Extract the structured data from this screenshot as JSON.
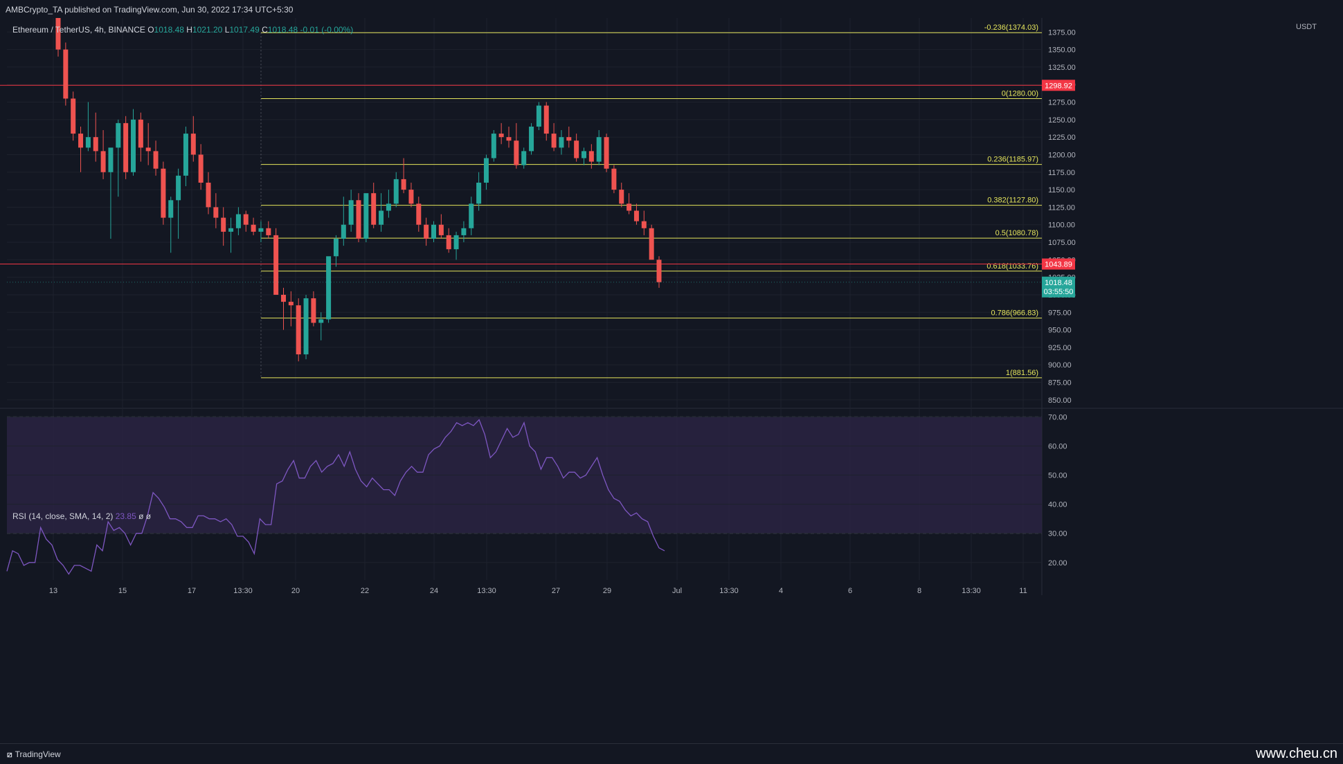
{
  "header": {
    "publisher_line": "AMBCrypto_TA published on TradingView.com, Jun 30, 2022 17:34 UTC+5:30"
  },
  "legend": {
    "symbol": "Ethereum / TetherUS, 4h, BINANCE",
    "open_label": "O",
    "open": "1018.48",
    "high_label": "H",
    "high": "1021.20",
    "low_label": "L",
    "low": "1017.49",
    "close_label": "C",
    "close": "1018.48",
    "change": "-0.01 (-0.00%)"
  },
  "rsi_legend": {
    "label": "RSI (14, close, SMA, 14, 2)",
    "value": "23.85",
    "extra": "ø ø"
  },
  "currency": "USDT",
  "price_badges": {
    "upper_line": "1298.92",
    "lower_line": "1043.89",
    "last_price": "1018.48",
    "countdown": "03:55:50"
  },
  "footer": {
    "brand": "TradingView",
    "watermark": "www.cheu.cn"
  },
  "colors": {
    "background": "#131722",
    "up": "#26a69a",
    "down": "#ef5350",
    "fib": "#e6e65c",
    "horizontal_line": "#f23645",
    "rsi_line": "#7e57c2",
    "rsi_band": "#2a2342"
  },
  "chart_data": [
    {
      "type": "candlestick",
      "title": "Ethereum / TetherUS, 4h, BINANCE",
      "ylabel": "USDT",
      "ylim": [
        840,
        1395
      ],
      "y_ticks": [
        850,
        875,
        900,
        925,
        950,
        975,
        1000,
        1025,
        1050,
        1075,
        1100,
        1125,
        1150,
        1175,
        1200,
        1225,
        1250,
        1275,
        1300,
        1325,
        1350,
        1375
      ],
      "x_tick_labels": [
        "13",
        "15",
        "17",
        "13:30",
        "20",
        "22",
        "24",
        "13:30",
        "27",
        "29",
        "Jul",
        "13:30",
        "4",
        "6",
        "8",
        "13:30",
        "11"
      ],
      "horizontal_lines": [
        1298.92,
        1043.89
      ],
      "fib_levels": [
        {
          "label": "-0.236(1374.03)",
          "value": 1374.03
        },
        {
          "label": "0(1280.00)",
          "value": 1280.0
        },
        {
          "label": "0.236(1185.97)",
          "value": 1185.97
        },
        {
          "label": "0.382(1127.80)",
          "value": 1127.8
        },
        {
          "label": "0.5(1080.78)",
          "value": 1080.78
        },
        {
          "label": "0.618(1033.76)",
          "value": 1033.76
        },
        {
          "label": "0.786(966.83)",
          "value": 966.83
        },
        {
          "label": "1(881.56)",
          "value": 881.56
        }
      ],
      "candles_ohlc": [
        [
          1420,
          1440,
          1340,
          1350
        ],
        [
          1350,
          1360,
          1270,
          1280
        ],
        [
          1280,
          1290,
          1220,
          1230
        ],
        [
          1230,
          1240,
          1175,
          1210
        ],
        [
          1210,
          1275,
          1205,
          1225
        ],
        [
          1225,
          1260,
          1190,
          1205
        ],
        [
          1205,
          1235,
          1165,
          1175
        ],
        [
          1175,
          1185,
          1080,
          1210
        ],
        [
          1210,
          1250,
          1140,
          1245
        ],
        [
          1245,
          1255,
          1165,
          1175
        ],
        [
          1175,
          1265,
          1170,
          1250
        ],
        [
          1250,
          1260,
          1190,
          1210
        ],
        [
          1210,
          1245,
          1185,
          1205
        ],
        [
          1205,
          1220,
          1170,
          1180
        ],
        [
          1180,
          1190,
          1100,
          1110
        ],
        [
          1110,
          1140,
          1060,
          1135
        ],
        [
          1135,
          1180,
          1080,
          1170
        ],
        [
          1170,
          1240,
          1155,
          1230
        ],
        [
          1230,
          1255,
          1190,
          1200
        ],
        [
          1200,
          1215,
          1150,
          1160
        ],
        [
          1160,
          1175,
          1115,
          1125
        ],
        [
          1125,
          1145,
          1095,
          1110
        ],
        [
          1110,
          1125,
          1070,
          1090
        ],
        [
          1090,
          1110,
          1060,
          1095
        ],
        [
          1095,
          1125,
          1085,
          1115
        ],
        [
          1115,
          1120,
          1090,
          1100
        ],
        [
          1100,
          1110,
          1085,
          1090
        ],
        [
          1090,
          1105,
          1075,
          1095
        ],
        [
          1095,
          1105,
          1080,
          1085
        ],
        [
          1085,
          1095,
          1035,
          1000
        ],
        [
          1000,
          1010,
          950,
          990
        ],
        [
          990,
          1005,
          955,
          985
        ],
        [
          985,
          995,
          905,
          915
        ],
        [
          915,
          1000,
          908,
          995
        ],
        [
          995,
          1005,
          955,
          960
        ],
        [
          960,
          975,
          935,
          965
        ],
        [
          965,
          1050,
          960,
          1055
        ],
        [
          1055,
          1085,
          1040,
          1080
        ],
        [
          1080,
          1140,
          1070,
          1100
        ],
        [
          1100,
          1150,
          1090,
          1135
        ],
        [
          1135,
          1145,
          1075,
          1080
        ],
        [
          1080,
          1140,
          1075,
          1145
        ],
        [
          1145,
          1160,
          1095,
          1100
        ],
        [
          1100,
          1145,
          1090,
          1120
        ],
        [
          1120,
          1150,
          1110,
          1130
        ],
        [
          1130,
          1175,
          1125,
          1165
        ],
        [
          1165,
          1195,
          1145,
          1150
        ],
        [
          1150,
          1160,
          1125,
          1130
        ],
        [
          1130,
          1140,
          1090,
          1100
        ],
        [
          1100,
          1110,
          1070,
          1080
        ],
        [
          1080,
          1105,
          1075,
          1100
        ],
        [
          1100,
          1115,
          1080,
          1085
        ],
        [
          1085,
          1095,
          1060,
          1065
        ],
        [
          1065,
          1090,
          1050,
          1085
        ],
        [
          1085,
          1105,
          1075,
          1095
        ],
        [
          1095,
          1140,
          1085,
          1130
        ],
        [
          1130,
          1175,
          1120,
          1160
        ],
        [
          1160,
          1200,
          1150,
          1195
        ],
        [
          1195,
          1235,
          1190,
          1230
        ],
        [
          1230,
          1245,
          1215,
          1225
        ],
        [
          1225,
          1240,
          1210,
          1220
        ],
        [
          1220,
          1245,
          1180,
          1185
        ],
        [
          1185,
          1210,
          1180,
          1205
        ],
        [
          1205,
          1245,
          1200,
          1240
        ],
        [
          1240,
          1275,
          1235,
          1270
        ],
        [
          1270,
          1275,
          1220,
          1230
        ],
        [
          1230,
          1245,
          1205,
          1210
        ],
        [
          1210,
          1235,
          1200,
          1225
        ],
        [
          1225,
          1240,
          1210,
          1220
        ],
        [
          1220,
          1230,
          1190,
          1195
        ],
        [
          1195,
          1210,
          1185,
          1205
        ],
        [
          1205,
          1215,
          1180,
          1190
        ],
        [
          1190,
          1235,
          1185,
          1225
        ],
        [
          1225,
          1230,
          1175,
          1180
        ],
        [
          1180,
          1185,
          1145,
          1150
        ],
        [
          1150,
          1160,
          1125,
          1130
        ],
        [
          1130,
          1145,
          1115,
          1120
        ],
        [
          1120,
          1130,
          1100,
          1105
        ],
        [
          1105,
          1120,
          1085,
          1095
        ],
        [
          1095,
          1100,
          1060,
          1050
        ],
        [
          1050,
          1055,
          1010,
          1018
        ]
      ]
    },
    {
      "type": "line",
      "title": "RSI (14, close, SMA, 14, 2)",
      "ylim": [
        14,
        72
      ],
      "y_ticks": [
        20,
        30,
        40,
        50,
        60,
        70
      ],
      "band": [
        30,
        70
      ],
      "midline": 50,
      "series": [
        {
          "values": [
            17,
            24,
            23,
            19,
            20,
            20,
            32,
            28,
            26,
            21,
            19,
            16,
            19,
            19,
            18,
            17,
            26,
            24,
            34,
            31,
            32,
            30,
            26,
            30,
            30,
            36,
            44,
            42,
            39,
            35,
            35,
            34,
            32,
            32,
            36,
            36,
            35,
            35,
            34,
            35,
            33,
            29,
            29,
            27,
            23,
            35,
            33,
            33,
            47,
            48,
            52,
            55,
            49,
            49,
            53,
            55,
            51,
            53,
            54,
            57,
            53,
            58,
            52,
            48,
            46,
            49,
            47,
            45,
            45,
            43,
            48,
            51,
            53,
            51,
            51,
            57,
            59,
            60,
            63,
            65,
            68,
            67,
            68,
            67,
            69,
            64,
            56,
            58,
            62,
            66,
            63,
            64,
            68,
            60,
            58,
            52,
            56,
            56,
            53,
            49,
            51,
            51,
            49,
            50,
            53,
            56,
            50,
            45,
            42,
            41,
            38,
            36,
            37,
            35,
            34,
            29,
            25,
            24
          ]
        }
      ]
    }
  ]
}
